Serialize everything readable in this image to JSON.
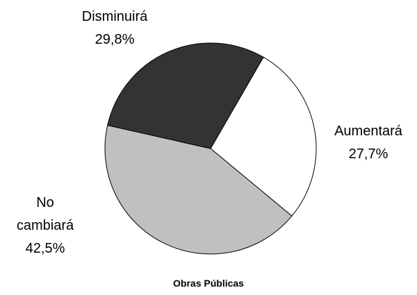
{
  "chart_data": {
    "type": "pie",
    "title": "Obras Públicas",
    "start_angle": 30,
    "categories": [
      "Aumentará",
      "No cambiará",
      "Disminuirá"
    ],
    "values": [
      27.7,
      42.5,
      29.8
    ],
    "value_labels": [
      "27,7%",
      "42,5%",
      "29,8%"
    ],
    "colors": [
      "#ffffff",
      "#c0c0c0",
      "#333333"
    ]
  }
}
